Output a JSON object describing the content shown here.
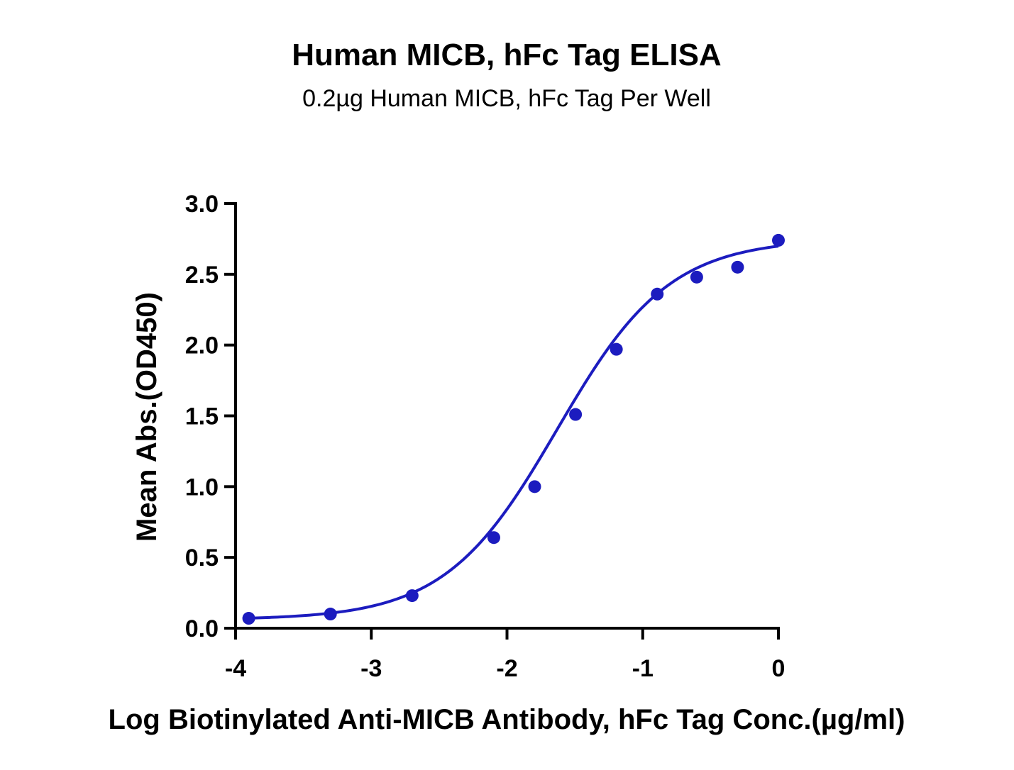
{
  "chart_data": {
    "type": "scatter",
    "title": "Human MICB, hFc Tag ELISA",
    "subtitle": "0.2µg Human MICB, hFc Tag Per Well",
    "xlabel": "Log Biotinylated Anti-MICB Antibody, hFc Tag Conc.(µg/ml)",
    "ylabel": "Mean Abs.(OD450)",
    "xlim": [
      -4,
      0
    ],
    "ylim": [
      0,
      3.0
    ],
    "x_ticks": [
      -4,
      -3,
      -2,
      -1,
      0
    ],
    "x_tick_labels": [
      "-4",
      "-3",
      "-2",
      "-1",
      "0"
    ],
    "y_ticks": [
      0,
      0.5,
      1.0,
      1.5,
      2.0,
      2.5,
      3.0
    ],
    "y_tick_labels": [
      "0.0",
      "0.5",
      "1.0",
      "1.5",
      "2.0",
      "2.5",
      "3.0"
    ],
    "grid": false,
    "legend": "none",
    "color": "#1c1cbf",
    "series": [
      {
        "x": [
          -3.903,
          -3.301,
          -2.699,
          -2.097,
          -1.796,
          -1.495,
          -1.194,
          -0.893,
          -0.602,
          -0.301,
          0.0
        ],
        "y": [
          0.07,
          0.1,
          0.23,
          0.64,
          1.0,
          1.51,
          1.97,
          2.36,
          2.48,
          2.55,
          2.74
        ]
      }
    ],
    "fit_curve": {
      "type": "4PL",
      "bottom": 0.06,
      "top": 2.75,
      "log_ec50": -1.63,
      "hill_slope": 1.05,
      "x_range": [
        -3.903,
        0.0
      ]
    }
  }
}
